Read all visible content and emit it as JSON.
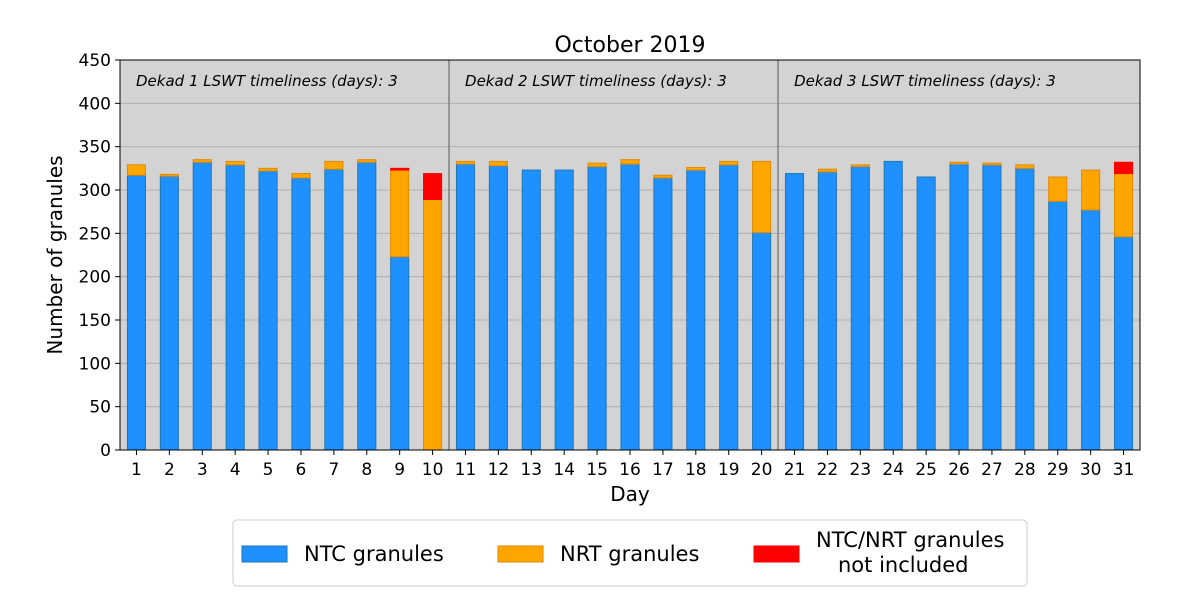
{
  "colors": {
    "ntc": "#1e90ff",
    "ntc_edge": "#1f77b4",
    "nrt": "#ffa500",
    "nrt_edge": "#e08a00",
    "not_included": "#ff0000",
    "plot_bg": "#d3d3d3",
    "grid": "#b0b0b0",
    "divider": "#808080"
  },
  "chart_data": {
    "type": "bar",
    "stacked": true,
    "title": "October 2019",
    "xlabel": "Day",
    "ylabel": "Number of granules",
    "ylim": [
      0,
      450
    ],
    "yticks": [
      0,
      50,
      100,
      150,
      200,
      250,
      300,
      350,
      400,
      450
    ],
    "grid": "horizontal",
    "categories": [
      "1",
      "2",
      "3",
      "4",
      "5",
      "6",
      "7",
      "8",
      "9",
      "10",
      "11",
      "12",
      "13",
      "14",
      "15",
      "16",
      "17",
      "18",
      "19",
      "20",
      "21",
      "22",
      "23",
      "24",
      "25",
      "26",
      "27",
      "28",
      "29",
      "30",
      "31"
    ],
    "series": [
      {
        "name": "NTC granules",
        "color_key": "ntc",
        "values": [
          317,
          316,
          332,
          329,
          322,
          314,
          324,
          332,
          223,
          0,
          330,
          328,
          323,
          323,
          327,
          330,
          314,
          323,
          329,
          251,
          319,
          321,
          327,
          333,
          315,
          330,
          329,
          325,
          287,
          277,
          246
        ]
      },
      {
        "name": "NRT granules",
        "color_key": "nrt",
        "values": [
          12,
          2,
          3,
          4,
          3,
          5,
          9,
          3,
          100,
          289,
          3,
          5,
          0,
          0,
          4,
          5,
          3,
          3,
          4,
          82,
          0,
          3,
          2,
          0,
          0,
          2,
          2,
          4,
          28,
          46,
          73
        ]
      },
      {
        "name": "NTC/NRT granules\nnot included",
        "color_key": "not_included",
        "values": [
          0,
          0,
          0,
          0,
          0,
          0,
          0,
          0,
          2,
          30,
          0,
          0,
          0,
          0,
          0,
          0,
          0,
          0,
          0,
          0,
          0,
          0,
          0,
          0,
          0,
          0,
          0,
          0,
          0,
          0,
          13
        ]
      }
    ],
    "annotations": [
      {
        "text": "Dekad 1 LSWT timeliness (days): 3",
        "start_day": 1,
        "end_day": 10
      },
      {
        "text": "Dekad 2 LSWT timeliness (days): 3",
        "start_day": 11,
        "end_day": 20
      },
      {
        "text": "Dekad 3 LSWT timeliness (days): 3",
        "start_day": 21,
        "end_day": 31
      }
    ],
    "legend": {
      "placement": "bottom-center",
      "entries": [
        {
          "label": "NTC granules",
          "color_key": "ntc"
        },
        {
          "label": "NRT granules",
          "color_key": "nrt"
        },
        {
          "label_line1": "NTC/NRT granules",
          "label_line2": "not included",
          "color_key": "not_included"
        }
      ]
    }
  }
}
